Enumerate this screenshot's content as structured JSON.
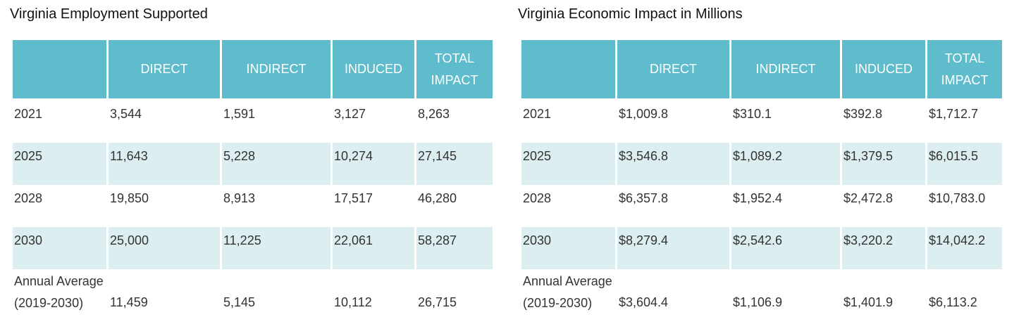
{
  "employment": {
    "title": "Virginia Employment Supported",
    "headers": [
      "",
      "DIRECT",
      "INDIRECT",
      "INDUCED",
      "TOTAL IMPACT"
    ],
    "rows": [
      [
        "2021",
        "3,544",
        "1,591",
        "3,127",
        "8,263"
      ],
      [
        "2025",
        "11,643",
        "5,228",
        "10,274",
        "27,145"
      ],
      [
        "2028",
        "19,850",
        "8,913",
        "17,517",
        "46,280"
      ],
      [
        "2030",
        "25,000",
        "11,225",
        "22,061",
        "58,287"
      ],
      [
        "Annual Average (2019-2030)",
        "11,459",
        "5,145",
        "10,112",
        "26,715"
      ]
    ]
  },
  "economic": {
    "title": "Virginia Economic Impact in Millions",
    "headers": [
      "",
      "DIRECT",
      "INDIRECT",
      "INDUCED",
      "TOTAL IMPACT"
    ],
    "rows": [
      [
        "2021",
        "$1,009.8",
        "$310.1",
        "$392.8",
        "$1,712.7"
      ],
      [
        "2025",
        "$3,546.8",
        "$1,089.2",
        "$1,379.5",
        "$6,015.5"
      ],
      [
        "2028",
        "$6,357.8",
        "$1,952.4",
        "$2,472.8",
        "$10,783.0"
      ],
      [
        "2030",
        "$8,279.4",
        "$2,542.6",
        "$3,220.2",
        "$14,042.2"
      ],
      [
        "Annual Average (2019-2030)",
        "$3,604.4",
        "$1,106.9",
        "$1,401.9",
        "$6,113.2"
      ]
    ]
  }
}
